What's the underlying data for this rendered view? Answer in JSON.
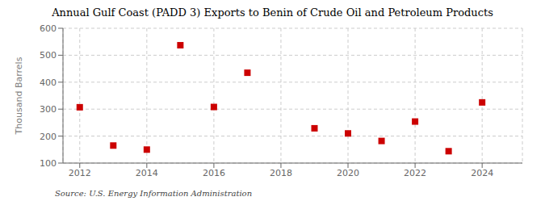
{
  "chart_data": {
    "type": "scatter",
    "title": "Annual Gulf Coast (PADD 3) Exports to Benin of Crude Oil and Petroleum Products",
    "ylabel": "Thousand Barrels",
    "annotations": [
      "Source: U.S. Energy Information Administration"
    ],
    "x": [
      2012,
      2013,
      2014,
      2015,
      2016,
      2017,
      2019,
      2020,
      2021,
      2022,
      2023,
      2024
    ],
    "values": [
      307,
      165,
      150,
      537,
      308,
      435,
      229,
      210,
      182,
      254,
      144,
      325
    ],
    "color": "#cc0000",
    "marker": "square",
    "xlim": [
      2011.5,
      2025.2
    ],
    "ylim": [
      100,
      600
    ],
    "xticks": [
      2012,
      2014,
      2016,
      2018,
      2020,
      2022,
      2024
    ],
    "yticks": [
      100,
      200,
      300,
      400,
      500,
      600
    ],
    "grid": true
  }
}
